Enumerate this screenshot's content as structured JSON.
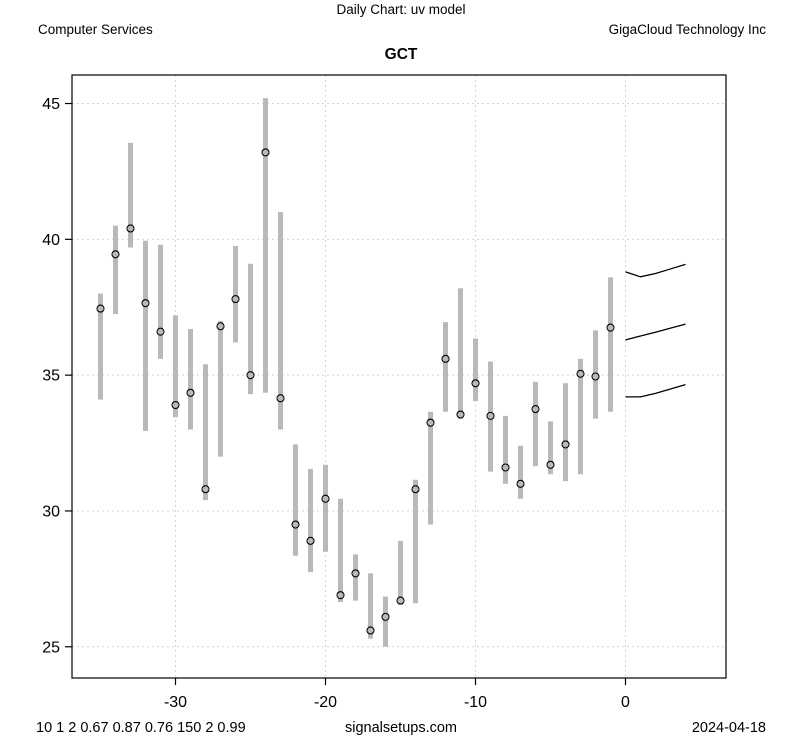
{
  "header": {
    "title": "Daily Chart: uv model",
    "sector": "Computer Services",
    "company": "GigaCloud Technology Inc",
    "symbol": "GCT"
  },
  "footer": {
    "params": "10 1 2 0.67 0.87 0.76 150 2 0.99",
    "site": "signalsetups.com",
    "date": "2024-04-18"
  },
  "chart_data": {
    "type": "hlc-bar",
    "title": "GCT",
    "xlabel": "",
    "ylabel": "",
    "x_ticks": [
      -30,
      -20,
      -10,
      0
    ],
    "y_ticks": [
      25,
      30,
      35,
      40,
      45
    ],
    "xlim": [
      -36.9,
      6.7
    ],
    "ylim": [
      23.85,
      46.05
    ],
    "grid": true,
    "bar_color": "#b9b9b9",
    "grid_color": "#d4d4d4",
    "marker": "open-circle",
    "bars": [
      {
        "day": -35,
        "low": 34.1,
        "high": 38.0,
        "close": 37.45
      },
      {
        "day": -34,
        "low": 37.25,
        "high": 40.5,
        "close": 39.45
      },
      {
        "day": -33,
        "low": 39.7,
        "high": 43.55,
        "close": 40.4
      },
      {
        "day": -32,
        "low": 32.95,
        "high": 39.95,
        "close": 37.65
      },
      {
        "day": -31,
        "low": 35.6,
        "high": 39.8,
        "close": 36.6
      },
      {
        "day": -30,
        "low": 33.45,
        "high": 37.2,
        "close": 33.9
      },
      {
        "day": -29,
        "low": 33.0,
        "high": 36.7,
        "close": 34.35
      },
      {
        "day": -28,
        "low": 30.4,
        "high": 35.4,
        "close": 30.8
      },
      {
        "day": -27,
        "low": 32.0,
        "high": 37.0,
        "close": 36.8
      },
      {
        "day": -26,
        "low": 36.2,
        "high": 39.75,
        "close": 37.8
      },
      {
        "day": -25,
        "low": 34.3,
        "high": 39.1,
        "close": 35.0
      },
      {
        "day": -24,
        "low": 34.35,
        "high": 45.2,
        "close": 43.2
      },
      {
        "day": -23,
        "low": 33.0,
        "high": 41.0,
        "close": 34.15
      },
      {
        "day": -22,
        "low": 28.35,
        "high": 32.45,
        "close": 29.5
      },
      {
        "day": -21,
        "low": 27.75,
        "high": 31.55,
        "close": 28.9
      },
      {
        "day": -20,
        "low": 28.5,
        "high": 31.7,
        "close": 30.45
      },
      {
        "day": -19,
        "low": 26.65,
        "high": 30.45,
        "close": 26.9
      },
      {
        "day": -18,
        "low": 26.7,
        "high": 28.4,
        "close": 27.7
      },
      {
        "day": -17,
        "low": 25.3,
        "high": 27.7,
        "close": 25.6
      },
      {
        "day": -16,
        "low": 25.0,
        "high": 26.85,
        "close": 26.1
      },
      {
        "day": -15,
        "low": 26.55,
        "high": 28.9,
        "close": 26.7
      },
      {
        "day": -14,
        "low": 26.6,
        "high": 31.15,
        "close": 30.8
      },
      {
        "day": -13,
        "low": 29.5,
        "high": 33.65,
        "close": 33.25
      },
      {
        "day": -12,
        "low": 33.65,
        "high": 36.95,
        "close": 35.6
      },
      {
        "day": -11,
        "low": 33.4,
        "high": 38.2,
        "close": 33.55
      },
      {
        "day": -10,
        "low": 34.05,
        "high": 36.35,
        "close": 34.7
      },
      {
        "day": -9,
        "low": 31.45,
        "high": 35.5,
        "close": 33.5
      },
      {
        "day": -8,
        "low": 31.0,
        "high": 33.5,
        "close": 31.6
      },
      {
        "day": -7,
        "low": 30.45,
        "high": 32.4,
        "close": 31.0
      },
      {
        "day": -6,
        "low": 31.65,
        "high": 34.75,
        "close": 33.75
      },
      {
        "day": -5,
        "low": 31.35,
        "high": 33.3,
        "close": 31.7
      },
      {
        "day": -4,
        "low": 31.1,
        "high": 34.7,
        "close": 32.45
      },
      {
        "day": -3,
        "low": 31.35,
        "high": 35.6,
        "close": 35.05
      },
      {
        "day": -2,
        "low": 33.4,
        "high": 36.65,
        "close": 34.95
      },
      {
        "day": -1,
        "low": 33.65,
        "high": 38.6,
        "close": 36.75
      }
    ],
    "forecast_color": "#000000",
    "forecast_lines": [
      {
        "name": "upper",
        "x": [
          0,
          1,
          2,
          3,
          4
        ],
        "y": [
          38.8,
          38.62,
          38.74,
          38.91,
          39.08
        ]
      },
      {
        "name": "middle",
        "x": [
          0,
          1,
          2,
          3,
          4
        ],
        "y": [
          36.3,
          36.44,
          36.58,
          36.73,
          36.88
        ]
      },
      {
        "name": "lower",
        "x": [
          0,
          1,
          2,
          3,
          4
        ],
        "y": [
          34.2,
          34.2,
          34.33,
          34.49,
          34.65
        ]
      }
    ]
  }
}
